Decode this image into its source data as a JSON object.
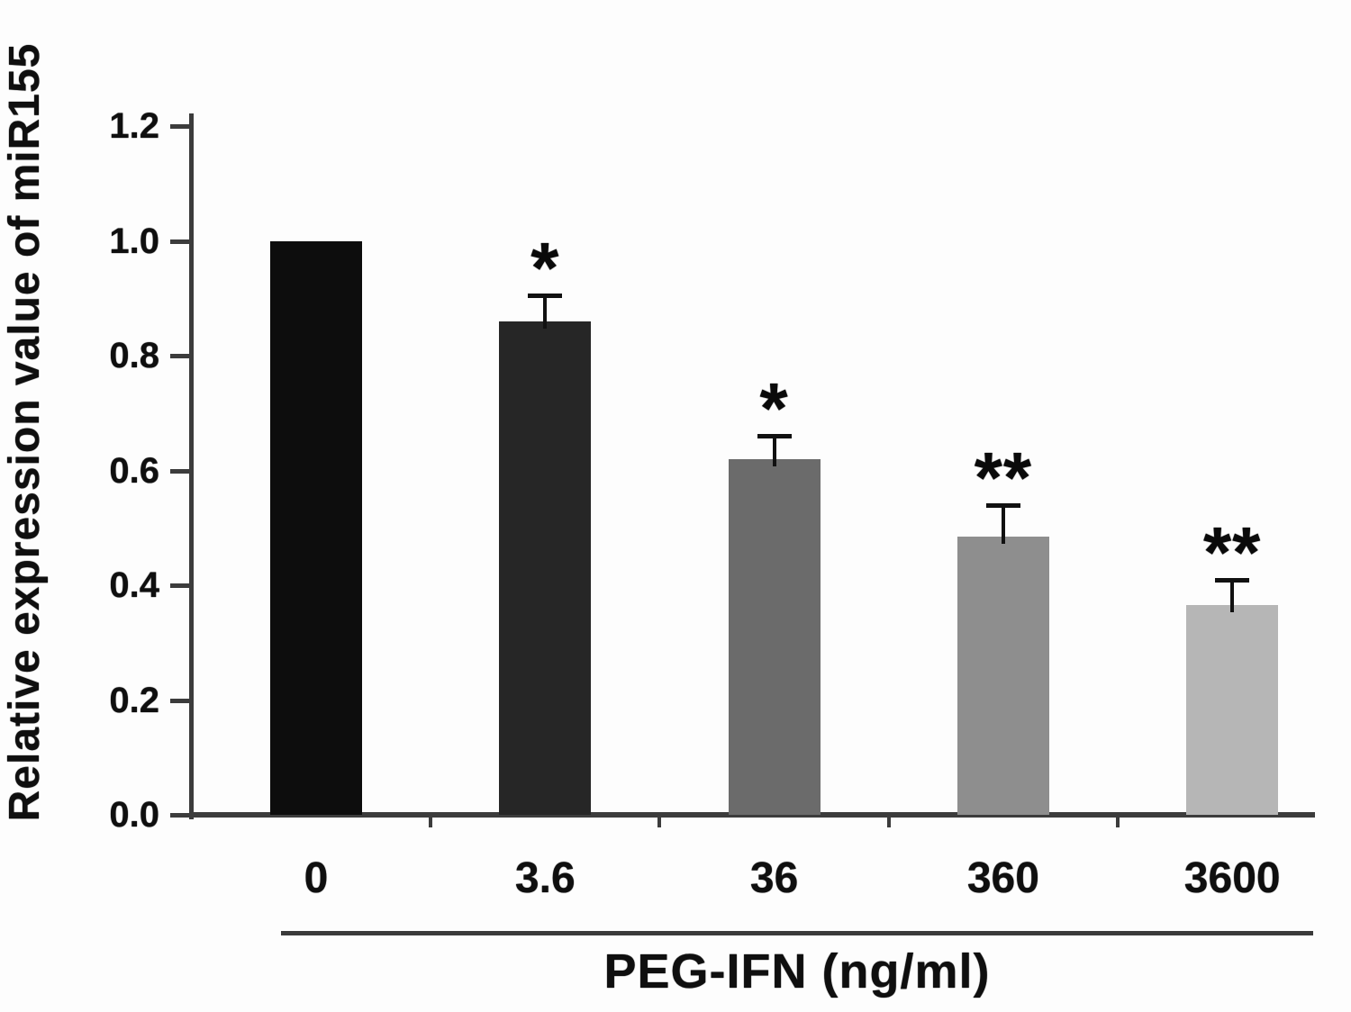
{
  "chart_data": {
    "type": "bar",
    "title": "",
    "ylabel": "Relative expression value of miR155",
    "xlabel": "PEG-IFN (ng/ml)",
    "categories": [
      "0",
      "3.6",
      "36",
      "360",
      "3600"
    ],
    "values": [
      1.0,
      0.86,
      0.62,
      0.485,
      0.365
    ],
    "errors": [
      0,
      0.045,
      0.04,
      0.055,
      0.045
    ],
    "significance": [
      "",
      "*",
      "*",
      "**",
      "**"
    ],
    "bar_colors": [
      "#0d0d0d",
      "#262626",
      "#6b6b6b",
      "#8e8e8e",
      "#b6b6b6"
    ],
    "ylim": [
      0,
      1.2
    ],
    "yticks": [
      "0.0",
      "0.2",
      "0.4",
      "0.6",
      "0.8",
      "1.0",
      "1.2"
    ],
    "grid": false,
    "legend": "none",
    "axis_color": "#3c3c3c",
    "error_bar_color": "#111111",
    "text_color": "#0f0f0f"
  }
}
